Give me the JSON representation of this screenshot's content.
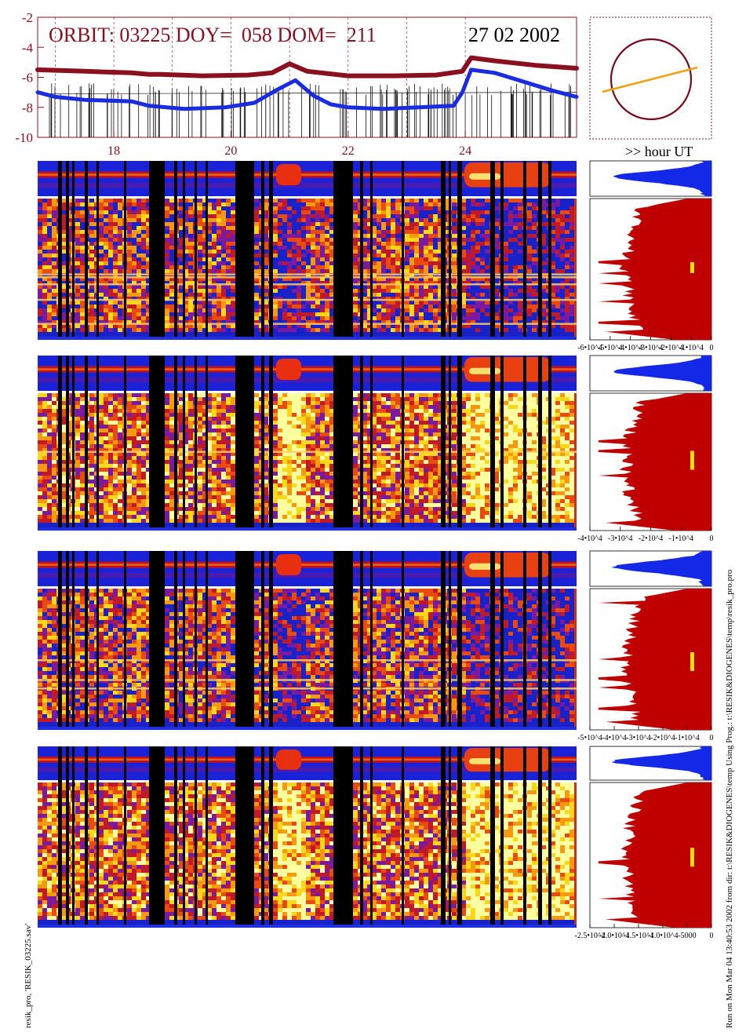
{
  "header": {
    "orbit_line": "ORBIT: 03225 DOY=  058 DOM=  211",
    "date": "27 02 2002",
    "hour_label": ">> hour UT"
  },
  "footer": {
    "left_vertical": "resik_pro, 'RESIK_03225.sav'",
    "right_vertical": "Run on Mon Mar 04 13:40:53 2002  from dir: t:\\RESIK&DIOGENES\\temp Using Prog.: t:\\RESIK&DIOGENES\\temp\\resik_pro.pro"
  },
  "colors": {
    "flux_high": "#8a1020",
    "flux_low": "#1a2ce0",
    "orbit_circle": "#7a0a1a",
    "orbit_track": "#f0a010",
    "hist_small": "#1428e8",
    "hist_large": "#c00000",
    "marker": "#ffe000"
  },
  "chart_data": [
    {
      "type": "line",
      "id": "flux-overview",
      "yticks": [
        "-2",
        "-4",
        "-6",
        "-8",
        "-10"
      ],
      "ylim": [
        -10,
        -2
      ],
      "xticks": [
        "18",
        "20",
        "22",
        "24"
      ],
      "xlim": [
        16.7,
        25.9
      ],
      "series": [
        {
          "x": [
            16.7,
            17.5,
            18.3,
            18.6,
            18.8,
            19.5,
            20.3,
            20.7,
            21.0,
            21.3,
            22.0,
            22.8,
            23.5,
            23.95,
            24.1,
            24.5,
            25.2,
            25.9
          ],
          "values": [
            -5.5,
            -5.6,
            -5.7,
            -5.8,
            -5.8,
            -5.9,
            -5.85,
            -5.7,
            -5.1,
            -5.6,
            -5.9,
            -5.9,
            -5.85,
            -5.6,
            -4.7,
            -4.9,
            -5.2,
            -5.4
          ]
        },
        {
          "x": [
            16.7,
            17.0,
            17.5,
            18.3,
            18.6,
            19.2,
            19.9,
            20.4,
            20.8,
            21.1,
            21.4,
            21.7,
            22.0,
            22.6,
            23.2,
            23.8,
            23.95,
            24.1,
            24.5,
            25.0,
            25.5,
            25.9
          ],
          "values": [
            -7.0,
            -7.3,
            -7.5,
            -7.6,
            -7.9,
            -8.1,
            -8.0,
            -7.7,
            -6.8,
            -6.2,
            -7.2,
            -7.8,
            -8.0,
            -8.1,
            -8.0,
            -7.9,
            -7.0,
            -5.5,
            -5.7,
            -6.3,
            -6.9,
            -7.3
          ]
        }
      ]
    },
    {
      "type": "heatmap",
      "id": "spectrogram-1",
      "xlim": [
        16.7,
        25.9
      ],
      "highlight_bands": [
        0.53,
        0.55,
        0.6,
        0.71,
        0.88
      ]
    },
    {
      "type": "bar",
      "id": "histogram-1",
      "xticks": [
        "-6•10^4",
        "-5•10^4",
        "-4•10^4",
        "-3•10^4",
        "-2•10^4",
        "-1•10^4",
        "0"
      ]
    },
    {
      "type": "heatmap",
      "id": "spectrogram-2",
      "xlim": [
        16.7,
        25.9
      ],
      "highlight_bands": [
        0.42
      ]
    },
    {
      "type": "bar",
      "id": "histogram-2",
      "xticks": [
        "-4•10^4",
        "-3•10^4",
        "-2•10^4",
        "-1•10^4",
        "0"
      ]
    },
    {
      "type": "heatmap",
      "id": "spectrogram-3",
      "xlim": [
        16.7,
        25.9
      ],
      "highlight_bands": [
        0.5,
        0.64,
        0.7
      ]
    },
    {
      "type": "bar",
      "id": "histogram-3",
      "xticks": [
        "-5•10^4",
        "-4•10^4",
        "-3•10^4",
        "-2•10^4",
        "-1•10^4",
        "0"
      ]
    },
    {
      "type": "heatmap",
      "id": "spectrogram-4",
      "xlim": [
        16.7,
        25.9
      ],
      "highlight_bands": []
    },
    {
      "type": "bar",
      "id": "histogram-4",
      "xticks": [
        "-2.5•10^4",
        "-2.0•10^4",
        "-1.5•10^4",
        "-1.0•10^4",
        "-5000",
        "0"
      ]
    }
  ]
}
